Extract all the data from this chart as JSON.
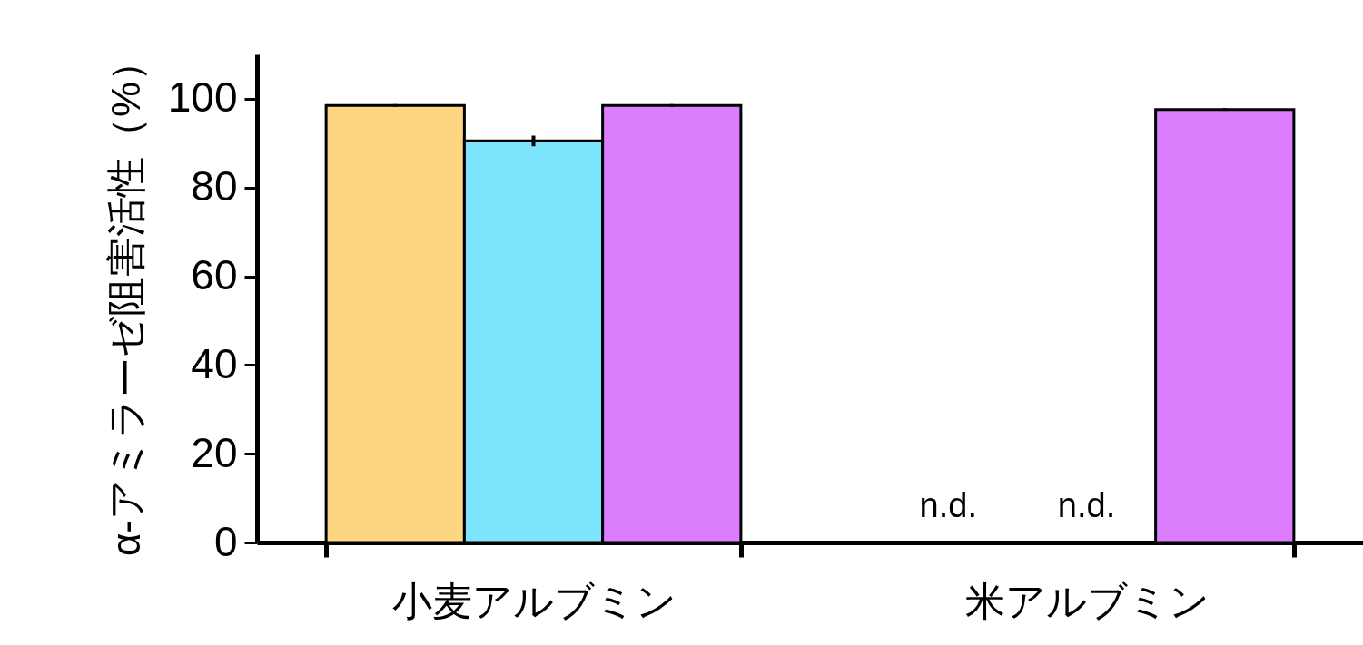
{
  "chart_data": {
    "type": "bar",
    "ylabel": "α-アミラーゼ阻害活性（%）",
    "categories": [
      "小麦アルブミン",
      "米アルブミン"
    ],
    "series": [
      {
        "color": "#fed580",
        "values": [
          98.5,
          null
        ],
        "errors": [
          0.3,
          null
        ],
        "value_labels": [
          null,
          "n.d."
        ]
      },
      {
        "color": "#7de5fe",
        "values": [
          90.5,
          null
        ],
        "errors": [
          1.2,
          null
        ],
        "value_labels": [
          null,
          "n.d."
        ]
      },
      {
        "color": "#dc7dfd",
        "values": [
          98.5,
          97.6
        ],
        "errors": [
          0.3,
          0.3
        ]
      }
    ],
    "ylim": [
      0,
      110
    ],
    "yticks": [
      0,
      20,
      40,
      60,
      80,
      100
    ],
    "grid": false,
    "legend": false
  }
}
